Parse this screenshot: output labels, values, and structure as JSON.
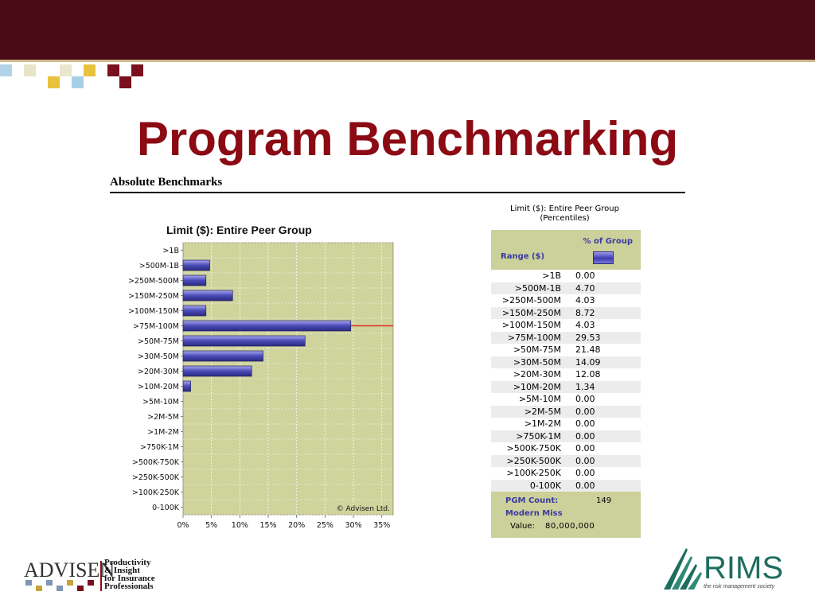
{
  "slide": {
    "title": "Program Benchmarking",
    "subtitle": "Absolute Benchmarks"
  },
  "colors": {
    "top_band": "#4a0a16",
    "title": "#8b0a13",
    "plot_bg": "#cfd39c",
    "bar": "#4a4ab8",
    "marker_line": "#e03020"
  },
  "chart_data": {
    "type": "bar",
    "orientation": "horizontal",
    "title": "Limit ($): Entire Peer Group",
    "categories": [
      ">1B",
      ">500M-1B",
      ">250M-500M",
      ">150M-250M",
      ">100M-150M",
      ">75M-100M",
      ">50M-75M",
      ">30M-50M",
      ">20M-30M",
      ">10M-20M",
      ">5M-10M",
      ">2M-5M",
      ">1M-2M",
      ">750K-1M",
      ">500K-750K",
      ">250K-500K",
      ">100K-250K",
      "0-100K"
    ],
    "values": [
      0.0,
      4.7,
      4.03,
      8.72,
      4.03,
      29.53,
      21.48,
      14.09,
      12.08,
      1.34,
      0.0,
      0.0,
      0.0,
      0.0,
      0.0,
      0.0,
      0.0,
      0.0
    ],
    "xlim": [
      0,
      37
    ],
    "xticks": [
      "0%",
      "5%",
      "10%",
      "15%",
      "20%",
      "25%",
      "30%",
      "35%"
    ],
    "xtick_values": [
      0,
      5,
      10,
      15,
      20,
      25,
      30,
      35
    ],
    "highlight_category": ">75M-100M",
    "grid": true,
    "annotation": "© Advisen Ltd."
  },
  "table": {
    "title_line1": "Limit ($): Entire Peer Group",
    "title_line2": "(Percentiles)",
    "col_range": "Range ($)",
    "col_pct": "% of Group",
    "rows": [
      {
        "range": ">1B",
        "value": "0.00"
      },
      {
        "range": ">500M-1B",
        "value": "4.70"
      },
      {
        "range": ">250M-500M",
        "value": "4.03"
      },
      {
        "range": ">150M-250M",
        "value": "8.72"
      },
      {
        "range": ">100M-150M",
        "value": "4.03"
      },
      {
        "range": ">75M-100M",
        "value": "29.53"
      },
      {
        "range": ">50M-75M",
        "value": "21.48"
      },
      {
        "range": ">30M-50M",
        "value": "14.09"
      },
      {
        "range": ">20M-30M",
        "value": "12.08"
      },
      {
        "range": ">10M-20M",
        "value": "1.34"
      },
      {
        "range": ">5M-10M",
        "value": "0.00"
      },
      {
        "range": ">2M-5M",
        "value": "0.00"
      },
      {
        "range": ">1M-2M",
        "value": "0.00"
      },
      {
        "range": ">750K-1M",
        "value": "0.00"
      },
      {
        "range": ">500K-750K",
        "value": "0.00"
      },
      {
        "range": ">250K-500K",
        "value": "0.00"
      },
      {
        "range": ">100K-250K",
        "value": "0.00"
      },
      {
        "range": "0-100K",
        "value": "0.00"
      }
    ],
    "pgm_count_label": "PGM Count:",
    "pgm_count_value": "149",
    "modern_miss_label": "Modern Miss",
    "value_label": "Value:",
    "value_value": "80,000,000"
  },
  "logos": {
    "advisen": {
      "name": "ADVISEN",
      "tagline": [
        "Productivity",
        "& Insight",
        "for Insurance",
        "Professionals"
      ]
    },
    "rims": {
      "name": "RIMS",
      "tagline": "the risk management society"
    }
  }
}
